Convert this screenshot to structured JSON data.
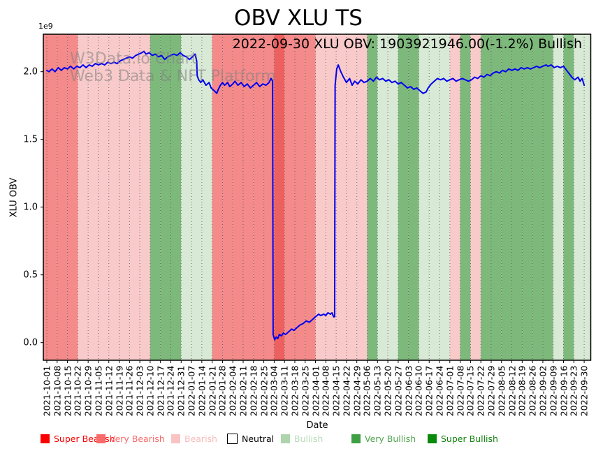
{
  "title": "OBV XLU TS",
  "annotation": "2022-09-30 XLU OBV: 1903921946.00(-1.2%) Bullish",
  "watermark": {
    "line1": "W3Data.io Chart",
    "line2": "Web3 Data & NFT Platform"
  },
  "axes": {
    "x_label": "Date",
    "y_label": "XLU OBV",
    "y_offset_label": "1e9",
    "y_tick_labels": [
      "0.0",
      "0.5",
      "1.0",
      "1.5",
      "2.0"
    ]
  },
  "legend": {
    "items": [
      {
        "label": "Super Bearish",
        "swatch_color": "#fa0000",
        "text_color": "#fa0000",
        "border": "none",
        "x": 58
      },
      {
        "label": "Very Bearish",
        "swatch_color": "#f96b6b",
        "text_color": "#f96b6b",
        "border": "none",
        "x": 138
      },
      {
        "label": "Bearish",
        "swatch_color": "#fac3c3",
        "text_color": "#f7baba",
        "border": "none",
        "x": 245
      },
      {
        "label": "Neutral",
        "swatch_color": "#ffffff",
        "text_color": "#000000",
        "border": "1.2px solid #000",
        "x": 325
      },
      {
        "label": "Bullish",
        "swatch_color": "#aed4ae",
        "text_color": "#b7dab7",
        "border": "none",
        "x": 402
      },
      {
        "label": "Very Bullish",
        "swatch_color": "#3da044",
        "text_color": "#4fa44f",
        "border": "none",
        "x": 503
      },
      {
        "label": "Super Bullish",
        "swatch_color": "#0a8a0a",
        "text_color": "#14810f",
        "border": "none",
        "x": 612
      }
    ]
  },
  "colors": {
    "line": "#0000ee",
    "grid": "#555555",
    "spine": "#000000",
    "sentiment_bands": {
      "super_bearish": "#ed6060",
      "very_bearish": "#f48a8a",
      "bearish": "#f9caca",
      "neutral": "#ffffff",
      "bullish": "#d8e9d5",
      "very_bullish": "#7eb97c",
      "super_bullish": "#55a355"
    }
  },
  "chart_data": {
    "type": "line",
    "title": "OBV XLU TS",
    "xlabel": "Date",
    "ylabel": "XLU OBV",
    "y_unit_note": "series values are in units of 1e9 (multiply by 1000000000)",
    "ylim": [
      -130000000,
      2280000000
    ],
    "grid": "vertical dotted gridlines at weekly date ticks",
    "legend_position": "bottom",
    "final_value": 1903921946.0,
    "final_change_pct": -1.2,
    "final_sentiment": "Bullish",
    "x_tick_labels": [
      "2021-10-01",
      "2021-10-08",
      "2021-10-15",
      "2021-10-22",
      "2021-10-29",
      "2021-11-05",
      "2021-11-12",
      "2021-11-19",
      "2021-11-26",
      "2021-12-03",
      "2021-12-10",
      "2021-12-17",
      "2021-12-24",
      "2021-12-31",
      "2022-01-07",
      "2022-01-14",
      "2022-01-21",
      "2022-01-28",
      "2022-02-04",
      "2022-02-11",
      "2022-02-18",
      "2022-02-25",
      "2022-03-04",
      "2022-03-11",
      "2022-03-18",
      "2022-03-25",
      "2022-04-01",
      "2022-04-08",
      "2022-04-15",
      "2022-04-22",
      "2022-04-29",
      "2022-05-06",
      "2022-05-13",
      "2022-05-20",
      "2022-05-27",
      "2022-06-03",
      "2022-06-10",
      "2022-06-17",
      "2022-06-24",
      "2022-07-01",
      "2022-07-08",
      "2022-07-15",
      "2022-07-22",
      "2022-07-29",
      "2022-08-05",
      "2022-08-12",
      "2022-08-19",
      "2022-08-26",
      "2022-09-02",
      "2022-09-09",
      "2022-09-16",
      "2022-09-23",
      "2022-09-30"
    ],
    "background_week_sentiment": [
      "very_bearish",
      "very_bearish",
      "very_bearish",
      "bearish",
      "bearish",
      "bearish",
      "bearish",
      "bearish",
      "bearish",
      "bearish",
      "very_bullish",
      "very_bullish",
      "very_bullish",
      "bullish",
      "bullish",
      "bullish",
      "very_bearish",
      "very_bearish",
      "very_bearish",
      "very_bearish",
      "very_bearish",
      "very_bearish",
      "super_bearish",
      "very_bearish",
      "very_bearish",
      "very_bearish",
      "bearish",
      "bearish",
      "bearish",
      "bearish",
      "bearish",
      "very_bullish",
      "bullish",
      "bullish",
      "very_bullish",
      "very_bullish",
      "bullish",
      "bullish",
      "bullish",
      "bearish",
      "very_bullish",
      "bearish",
      "very_bullish",
      "very_bullish",
      "very_bullish",
      "very_bullish",
      "very_bullish",
      "very_bullish",
      "very_bullish",
      "bullish",
      "very_bullish",
      "bullish"
    ],
    "series": [
      {
        "name": "XLU OBV",
        "points": [
          [
            0,
            2.01
          ],
          [
            0.2,
            2.0
          ],
          [
            0.5,
            2.02
          ],
          [
            0.8,
            2.0
          ],
          [
            1.1,
            2.03
          ],
          [
            1.4,
            2.01
          ],
          [
            1.7,
            2.03
          ],
          [
            2,
            2.02
          ],
          [
            2.3,
            2.04
          ],
          [
            2.6,
            2.02
          ],
          [
            2.9,
            2.04
          ],
          [
            3.2,
            2.03
          ],
          [
            3.5,
            2.05
          ],
          [
            3.8,
            2.03
          ],
          [
            4.1,
            2.05
          ],
          [
            4.4,
            2.04
          ],
          [
            4.7,
            2.06
          ],
          [
            5,
            2.05
          ],
          [
            5.3,
            2.06
          ],
          [
            5.6,
            2.05
          ],
          [
            5.9,
            2.07
          ],
          [
            6.2,
            2.06
          ],
          [
            6.5,
            2.07
          ],
          [
            6.8,
            2.06
          ],
          [
            7.1,
            2.08
          ],
          [
            7.4,
            2.09
          ],
          [
            7.7,
            2.1
          ],
          [
            8,
            2.11
          ],
          [
            8.3,
            2.1
          ],
          [
            8.6,
            2.12
          ],
          [
            8.9,
            2.13
          ],
          [
            9.2,
            2.14
          ],
          [
            9.4,
            2.15
          ],
          [
            9.6,
            2.13
          ],
          [
            9.9,
            2.14
          ],
          [
            10.2,
            2.12
          ],
          [
            10.5,
            2.13
          ],
          [
            10.8,
            2.11
          ],
          [
            11.1,
            2.12
          ],
          [
            11.4,
            2.09
          ],
          [
            11.7,
            2.11
          ],
          [
            12,
            2.12
          ],
          [
            12.3,
            2.13
          ],
          [
            12.6,
            2.12
          ],
          [
            12.9,
            2.14
          ],
          [
            13.2,
            2.12
          ],
          [
            13.5,
            2.11
          ],
          [
            13.8,
            2.09
          ],
          [
            14.1,
            2.11
          ],
          [
            14.35,
            2.13
          ],
          [
            14.5,
            2.08
          ],
          [
            14.55,
            1.97
          ],
          [
            14.7,
            1.94
          ],
          [
            14.9,
            1.92
          ],
          [
            15.1,
            1.94
          ],
          [
            15.4,
            1.9
          ],
          [
            15.7,
            1.92
          ],
          [
            15.9,
            1.88
          ],
          [
            16.2,
            1.86
          ],
          [
            16.45,
            1.84
          ],
          [
            16.6,
            1.87
          ],
          [
            16.8,
            1.9
          ],
          [
            17,
            1.92
          ],
          [
            17.2,
            1.9
          ],
          [
            17.5,
            1.92
          ],
          [
            17.7,
            1.89
          ],
          [
            18,
            1.91
          ],
          [
            18.2,
            1.93
          ],
          [
            18.5,
            1.9
          ],
          [
            18.8,
            1.92
          ],
          [
            19.1,
            1.89
          ],
          [
            19.4,
            1.91
          ],
          [
            19.7,
            1.88
          ],
          [
            20,
            1.9
          ],
          [
            20.3,
            1.92
          ],
          [
            20.6,
            1.89
          ],
          [
            20.9,
            1.91
          ],
          [
            21.2,
            1.9
          ],
          [
            21.5,
            1.92
          ],
          [
            21.7,
            1.95
          ],
          [
            21.85,
            1.93
          ],
          [
            21.9,
            0.06
          ],
          [
            22.05,
            0.02
          ],
          [
            22.2,
            0.04
          ],
          [
            22.35,
            0.03
          ],
          [
            22.5,
            0.06
          ],
          [
            22.7,
            0.05
          ],
          [
            22.9,
            0.07
          ],
          [
            23.1,
            0.06
          ],
          [
            23.4,
            0.08
          ],
          [
            23.7,
            0.1
          ],
          [
            23.9,
            0.09
          ],
          [
            24.2,
            0.11
          ],
          [
            24.5,
            0.13
          ],
          [
            24.8,
            0.14
          ],
          [
            25.1,
            0.16
          ],
          [
            25.4,
            0.15
          ],
          [
            25.7,
            0.17
          ],
          [
            26,
            0.19
          ],
          [
            26.3,
            0.21
          ],
          [
            26.5,
            0.2
          ],
          [
            26.8,
            0.21
          ],
          [
            27,
            0.2
          ],
          [
            27.2,
            0.22
          ],
          [
            27.45,
            0.21
          ],
          [
            27.6,
            0.22
          ],
          [
            27.75,
            0.19
          ],
          [
            27.85,
            0.19
          ],
          [
            27.9,
            1.9
          ],
          [
            28.05,
            2.02
          ],
          [
            28.2,
            2.05
          ],
          [
            28.45,
            2.0
          ],
          [
            28.7,
            1.96
          ],
          [
            29,
            1.92
          ],
          [
            29.3,
            1.95
          ],
          [
            29.55,
            1.9
          ],
          [
            29.8,
            1.93
          ],
          [
            30.1,
            1.91
          ],
          [
            30.4,
            1.94
          ],
          [
            30.7,
            1.92
          ],
          [
            31,
            1.93
          ],
          [
            31.3,
            1.95
          ],
          [
            31.6,
            1.93
          ],
          [
            31.9,
            1.96
          ],
          [
            32.2,
            1.94
          ],
          [
            32.5,
            1.95
          ],
          [
            32.8,
            1.93
          ],
          [
            33.1,
            1.94
          ],
          [
            33.4,
            1.92
          ],
          [
            33.7,
            1.93
          ],
          [
            34,
            1.91
          ],
          [
            34.3,
            1.92
          ],
          [
            34.6,
            1.9
          ],
          [
            34.9,
            1.88
          ],
          [
            35.2,
            1.89
          ],
          [
            35.5,
            1.87
          ],
          [
            35.8,
            1.88
          ],
          [
            36.1,
            1.86
          ],
          [
            36.4,
            1.84
          ],
          [
            36.7,
            1.85
          ],
          [
            36.9,
            1.88
          ],
          [
            37.2,
            1.91
          ],
          [
            37.5,
            1.93
          ],
          [
            37.8,
            1.95
          ],
          [
            38.1,
            1.94
          ],
          [
            38.4,
            1.95
          ],
          [
            38.7,
            1.93
          ],
          [
            39,
            1.94
          ],
          [
            39.3,
            1.95
          ],
          [
            39.6,
            1.93
          ],
          [
            39.9,
            1.94
          ],
          [
            40.2,
            1.95
          ],
          [
            40.5,
            1.94
          ],
          [
            40.8,
            1.93
          ],
          [
            41.1,
            1.94
          ],
          [
            41.4,
            1.96
          ],
          [
            41.7,
            1.95
          ],
          [
            42,
            1.97
          ],
          [
            42.3,
            1.96
          ],
          [
            42.6,
            1.98
          ],
          [
            42.9,
            1.97
          ],
          [
            43.2,
            1.99
          ],
          [
            43.5,
            2.0
          ],
          [
            43.8,
            1.99
          ],
          [
            44.1,
            2.01
          ],
          [
            44.4,
            2.0
          ],
          [
            44.7,
            2.02
          ],
          [
            45,
            2.01
          ],
          [
            45.3,
            2.02
          ],
          [
            45.6,
            2.01
          ],
          [
            45.9,
            2.03
          ],
          [
            46.2,
            2.02
          ],
          [
            46.5,
            2.03
          ],
          [
            46.8,
            2.02
          ],
          [
            47.1,
            2.03
          ],
          [
            47.4,
            2.04
          ],
          [
            47.7,
            2.03
          ],
          [
            48,
            2.04
          ],
          [
            48.3,
            2.05
          ],
          [
            48.5,
            2.04
          ],
          [
            48.8,
            2.05
          ],
          [
            49.1,
            2.03
          ],
          [
            49.4,
            2.04
          ],
          [
            49.7,
            2.03
          ],
          [
            50,
            2.04
          ],
          [
            50.2,
            2.02
          ],
          [
            50.5,
            1.99
          ],
          [
            50.8,
            1.96
          ],
          [
            51.1,
            1.94
          ],
          [
            51.4,
            1.96
          ],
          [
            51.6,
            1.93
          ],
          [
            51.8,
            1.95
          ],
          [
            52,
            1.9
          ]
        ]
      }
    ]
  }
}
